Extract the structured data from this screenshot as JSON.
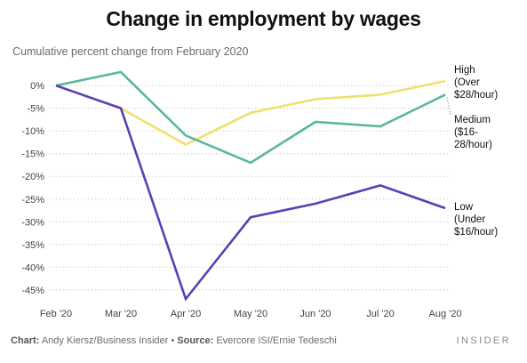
{
  "title": "Change in employment by wages",
  "subtitle": "Cumulative percent change from February 2020",
  "footer": {
    "chart_label": "Chart:",
    "chart_value": "Andy Kiersz/Business Insider",
    "separator": "•",
    "source_label": "Source:",
    "source_value": "Evercore ISI/Ernie Tedeschi"
  },
  "brand": "INSIDER",
  "chart_data": {
    "type": "line",
    "title": "Change in employment by wages",
    "subtitle": "Cumulative percent change from February 2020",
    "xlabel": "",
    "ylabel": "",
    "categories": [
      "Feb '20",
      "Mar '20",
      "Apr '20",
      "May '20",
      "Jun '20",
      "Jul '20",
      "Aug '20"
    ],
    "ylim": [
      -47,
      2
    ],
    "y_ticks": [
      0,
      -5,
      -10,
      -15,
      -20,
      -25,
      -30,
      -35,
      -40,
      -45
    ],
    "y_tick_labels": [
      "0%",
      "-5%",
      "-10%",
      "-15%",
      "-20%",
      "-25%",
      "-30%",
      "-35%",
      "-40%",
      "-45%"
    ],
    "grid": "horizontal dotted",
    "legend": "direct labels at line ends",
    "series": [
      {
        "name": "High (Over $28/hour)",
        "label_lines": [
          "High",
          "(Over",
          "$28/hour)"
        ],
        "color": "#f2df6e",
        "values": [
          0,
          -5,
          -13,
          -6,
          -3,
          -2,
          1
        ]
      },
      {
        "name": "Medium ($16-28/hour)",
        "label_lines": [
          "Medium",
          "($16-",
          "28/hour)"
        ],
        "color": "#5cb899",
        "values": [
          0,
          3,
          -11,
          -17,
          -8,
          -9,
          -2
        ]
      },
      {
        "name": "Low (Under $16/hour)",
        "label_lines": [
          "Low",
          "(Under",
          "$16/hour)"
        ],
        "color": "#5a3fb5",
        "values": [
          0,
          -5,
          -47,
          -29,
          -26,
          -22,
          -27
        ]
      }
    ]
  }
}
